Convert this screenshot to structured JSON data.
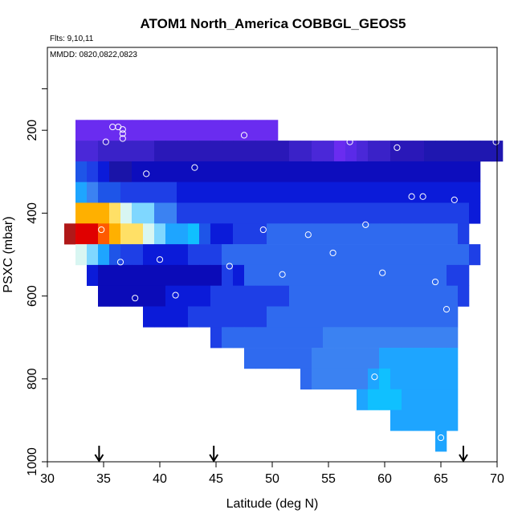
{
  "chart_data": {
    "type": "heatmap",
    "title": "ATOM1 North_America COBBGL_GEOS5",
    "subtitle_flights": "Flts: 9,10,11",
    "subtitle_dates": "MMDD: 0820,0822,0823",
    "xlabel": "Latitude (deg N)",
    "ylabel": "PSXC (mbar)",
    "xlim": [
      30,
      70
    ],
    "ylim": [
      1000,
      0
    ],
    "xticks": [
      "30",
      "35",
      "40",
      "45",
      "50",
      "55",
      "60",
      "65",
      "70"
    ],
    "yticks": [
      "200",
      "400",
      "600",
      "800",
      "1000"
    ],
    "x_tick_values": [
      30,
      35,
      40,
      45,
      50,
      55,
      60,
      65,
      70
    ],
    "y_tick_values": [
      200,
      400,
      600,
      800,
      1000
    ],
    "cell_width_deg": 1,
    "cell_height_mbar": 50,
    "color_scale": [
      "#0b1bd9",
      "#1e3fe6",
      "#2f6aef",
      "#3b82f2",
      "#1ea5ff",
      "#10c0ff",
      "#7fd7ff",
      "#d8f6f2",
      "#ffe066",
      "#ffb000",
      "#ff5a00",
      "#e00000",
      "#b01818"
    ],
    "row_series": [
      {
        "p": 200,
        "x0": 32.5,
        "colors": [
          "#6a2cf0",
          "#6a2cf0",
          "#6a2cf0",
          "#6a2cf0",
          "#6a2cf0",
          "#6a2cf0",
          "#6a2cf0",
          "#6a2cf0",
          "#6a2cf0",
          "#6a2cf0",
          "#6a2cf0",
          "#6a2cf0",
          "#6a2cf0",
          "#6a2cf0",
          "#6a2cf0",
          "#6a2cf0",
          "#6a2cf0",
          "#6a2cf0"
        ]
      },
      {
        "p": 250,
        "x0": 32.5,
        "colors": [
          "#4a28d8",
          "#4a28d8",
          "#3a22c8",
          "#3a22c8",
          "#3a22c8",
          "#3a22c8",
          "#3a22c8",
          "#2a18b8",
          "#2a18b8",
          "#2a18b8",
          "#2a18b8",
          "#2a18b8",
          "#2a18b8",
          "#2a18b8",
          "#2a18b8",
          "#2a18b8",
          "#2a18b8",
          "#2a18b8",
          "#2a18b8",
          "#3a22c8",
          "#3a22c8",
          "#4a28d8",
          "#4a28d8",
          "#6a2cf0",
          "#5a2ae8",
          "#4a28d8",
          "#3a22c8",
          "#3a22c8",
          "#2a18b8",
          "#2a18b8",
          "#2a18b8",
          "#1f17b0",
          "#1f17b0",
          "#1f17b0",
          "#1f17b0",
          "#1f17b0",
          "#1f17b0",
          "#1f17b0"
        ]
      },
      {
        "p": 300,
        "x0": 32.5,
        "colors": [
          "#1e55e8",
          "#1e3fe6",
          "#0b1bd9",
          "#1a14a8",
          "#1a14a8",
          "#0d0dbd",
          "#0d0dbd",
          "#0d0dbd",
          "#0d0dbd",
          "#0d0dbd",
          "#0d0dbd",
          "#0d0dbd",
          "#0d0dbd",
          "#0d0dbd",
          "#0d0dbd",
          "#0d0dbd",
          "#0d0dbd",
          "#0d0dbd",
          "#0d0dbd",
          "#0d0dbd",
          "#0d0dbd",
          "#0d0dbd",
          "#0d0dbd",
          "#0d0dbd",
          "#0d0dbd",
          "#0d0dbd",
          "#0d0dbd",
          "#0d0dbd",
          "#0d0dbd",
          "#0d0dbd",
          "#0d0dbd",
          "#0d0dbd",
          "#0d0dbd",
          "#0d0dbd",
          "#0d0dbd",
          "#0d0dbd"
        ]
      },
      {
        "p": 350,
        "x0": 32.5,
        "colors": [
          "#1ea5ff",
          "#3b82f2",
          "#1e55e8",
          "#1e55e8",
          "#1e3fe6",
          "#1e3fe6",
          "#1e3fe6",
          "#1e3fe6",
          "#1e3fe6",
          "#0b1bd9",
          "#0b1bd9",
          "#0b1bd9",
          "#0b1bd9",
          "#0b1bd9",
          "#0b1bd9",
          "#0b1bd9",
          "#0b1bd9",
          "#0b1bd9",
          "#0b1bd9",
          "#0b1bd9",
          "#0b1bd9",
          "#0b1bd9",
          "#0b1bd9",
          "#0b1bd9",
          "#0b1bd9",
          "#0b1bd9",
          "#0b1bd9",
          "#0b1bd9",
          "#0b1bd9",
          "#0b1bd9",
          "#0b1bd9",
          "#0b1bd9",
          "#0b1bd9",
          "#0b1bd9",
          "#0b1bd9",
          "#0b1bd9"
        ]
      },
      {
        "p": 400,
        "x0": 32.5,
        "colors": [
          "#ffb000",
          "#ffb000",
          "#ffb000",
          "#ffe066",
          "#d8f6f2",
          "#7fd7ff",
          "#7fd7ff",
          "#3b82f2",
          "#3b82f2",
          "#1e3fe6",
          "#1e3fe6",
          "#1e3fe6",
          "#1e3fe6",
          "#1e3fe6",
          "#1e3fe6",
          "#1e3fe6",
          "#1e3fe6",
          "#1e3fe6",
          "#1e3fe6",
          "#1e3fe6",
          "#1e3fe6",
          "#1e3fe6",
          "#1e3fe6",
          "#1e3fe6",
          "#1e3fe6",
          "#1e3fe6",
          "#1e3fe6",
          "#1e3fe6",
          "#1e3fe6",
          "#1e3fe6",
          "#1e3fe6",
          "#1e3fe6",
          "#1e3fe6",
          "#1e3fe6",
          "#1e3fe6",
          "#0b1bd9"
        ]
      },
      {
        "p": 450,
        "x0": 31.5,
        "colors": [
          "#b01818",
          "#e00000",
          "#e00000",
          "#ff5a00",
          "#ffb000",
          "#ffe066",
          "#ffe066",
          "#d8f6f2",
          "#7fd7ff",
          "#1ea5ff",
          "#1ea5ff",
          "#10c0ff",
          "#1e55e8",
          "#0b1bd9",
          "#0b1bd9",
          "#1e3fe6",
          "#1e3fe6",
          "#1e3fe6",
          "#2f6aef",
          "#2f6aef",
          "#2f6aef",
          "#2f6aef",
          "#2f6aef",
          "#2f6aef",
          "#2f6aef",
          "#2f6aef",
          "#2f6aef",
          "#2f6aef",
          "#2f6aef",
          "#2f6aef",
          "#2f6aef",
          "#2f6aef",
          "#2f6aef",
          "#2f6aef",
          "#2f6aef",
          "#1e3fe6"
        ]
      },
      {
        "p": 500,
        "x0": 32.5,
        "colors": [
          "#d8f6f2",
          "#7fd7ff",
          "#1ea5ff",
          "#1e55e8",
          "#1e3fe6",
          "#1e3fe6",
          "#0b1bd9",
          "#0b1bd9",
          "#0b1bd9",
          "#0b1bd9",
          "#1e3fe6",
          "#1e3fe6",
          "#1e3fe6",
          "#2f6aef",
          "#2f6aef",
          "#2f6aef",
          "#2f6aef",
          "#2f6aef",
          "#2f6aef",
          "#2f6aef",
          "#2f6aef",
          "#2f6aef",
          "#2f6aef",
          "#2f6aef",
          "#2f6aef",
          "#2f6aef",
          "#2f6aef",
          "#2f6aef",
          "#2f6aef",
          "#2f6aef",
          "#2f6aef",
          "#2f6aef",
          "#2f6aef",
          "#2f6aef",
          "#2f6aef",
          "#1e3fe6"
        ]
      },
      {
        "p": 550,
        "x0": 33.5,
        "colors": [
          "#0b1bd9",
          "#0b0bb8",
          "#0b0bb8",
          "#0b0bb8",
          "#0b0bb8",
          "#0b0bb8",
          "#0b0bb8",
          "#0b0bb8",
          "#0b0bb8",
          "#0b0bb8",
          "#0b0bb8",
          "#0b0bb8",
          "#1e3fe6",
          "#0b1bd9",
          "#2f6aef",
          "#2f6aef",
          "#2f6aef",
          "#2f6aef",
          "#2f6aef",
          "#2f6aef",
          "#2f6aef",
          "#2f6aef",
          "#2f6aef",
          "#2f6aef",
          "#2f6aef",
          "#2f6aef",
          "#2f6aef",
          "#2f6aef",
          "#2f6aef",
          "#2f6aef",
          "#2f6aef",
          "#2f6aef",
          "#1e3fe6",
          "#1e3fe6"
        ]
      },
      {
        "p": 600,
        "x0": 34.5,
        "colors": [
          "#0b0bb8",
          "#0b0bb8",
          "#0b0bb8",
          "#0b0bb8",
          "#0b0bb8",
          "#0b0bb8",
          "#0b1bd9",
          "#0b1bd9",
          "#0b1bd9",
          "#0b1bd9",
          "#1e3fe6",
          "#1e3fe6",
          "#1e3fe6",
          "#1e3fe6",
          "#1e3fe6",
          "#1e3fe6",
          "#1e3fe6",
          "#2f6aef",
          "#2f6aef",
          "#2f6aef",
          "#2f6aef",
          "#2f6aef",
          "#2f6aef",
          "#2f6aef",
          "#2f6aef",
          "#2f6aef",
          "#2f6aef",
          "#2f6aef",
          "#2f6aef",
          "#2f6aef",
          "#2f6aef",
          "#2f6aef",
          "#1e3fe6"
        ]
      },
      {
        "p": 650,
        "x0": 38.5,
        "colors": [
          "#0b1bd9",
          "#0b1bd9",
          "#0b1bd9",
          "#0b1bd9",
          "#1e3fe6",
          "#1e3fe6",
          "#1e3fe6",
          "#1e3fe6",
          "#1e3fe6",
          "#1e3fe6",
          "#1e3fe6",
          "#2f6aef",
          "#2f6aef",
          "#2f6aef",
          "#2f6aef",
          "#2f6aef",
          "#2f6aef",
          "#2f6aef",
          "#2f6aef",
          "#2f6aef",
          "#2f6aef",
          "#2f6aef",
          "#2f6aef",
          "#2f6aef",
          "#2f6aef",
          "#2f6aef",
          "#2f6aef",
          "#2f6aef"
        ]
      },
      {
        "p": 700,
        "x0": 44.5,
        "colors": [
          "#1e3fe6",
          "#2f6aef",
          "#2f6aef",
          "#2f6aef",
          "#2f6aef",
          "#2f6aef",
          "#2f6aef",
          "#2f6aef",
          "#2f6aef",
          "#2f6aef",
          "#3b82f2",
          "#3b82f2",
          "#3b82f2",
          "#3b82f2",
          "#3b82f2",
          "#3b82f2",
          "#3b82f2",
          "#3b82f2",
          "#3b82f2",
          "#3b82f2",
          "#3b82f2",
          "#3b82f2"
        ]
      },
      {
        "p": 750,
        "x0": 47.5,
        "colors": [
          "#2f6aef",
          "#2f6aef",
          "#2f6aef",
          "#2f6aef",
          "#2f6aef",
          "#2f6aef",
          "#3b82f2",
          "#3b82f2",
          "#3b82f2",
          "#3b82f2",
          "#3b82f2",
          "#3b82f2",
          "#1ea5ff",
          "#1ea5ff",
          "#1ea5ff",
          "#1ea5ff",
          "#1ea5ff",
          "#1ea5ff",
          "#1ea5ff"
        ]
      },
      {
        "p": 800,
        "x0": 52.5,
        "colors": [
          "#2f6aef",
          "#3b82f2",
          "#3b82f2",
          "#3b82f2",
          "#3b82f2",
          "#3b82f2",
          "#1ea5ff",
          "#10c0ff",
          "#1ea5ff",
          "#1ea5ff",
          "#1ea5ff",
          "#1ea5ff",
          "#1ea5ff",
          "#1ea5ff"
        ]
      },
      {
        "p": 850,
        "x0": 57.5,
        "colors": [
          "#1ea5ff",
          "#10c0ff",
          "#10c0ff",
          "#10c0ff",
          "#1ea5ff",
          "#1ea5ff",
          "#1ea5ff",
          "#1ea5ff",
          "#1ea5ff"
        ]
      },
      {
        "p": 900,
        "x0": 60.5,
        "colors": [
          "#1ea5ff",
          "#1ea5ff",
          "#1ea5ff",
          "#1ea5ff",
          "#1ea5ff",
          "#1ea5ff"
        ]
      },
      {
        "p": 950,
        "x0": 64.5,
        "colors": [
          "#1ea5ff"
        ]
      }
    ],
    "observations": [
      {
        "lat": 34.8,
        "p": 440
      },
      {
        "lat": 35.2,
        "p": 228
      },
      {
        "lat": 35.8,
        "p": 192
      },
      {
        "lat": 36.3,
        "p": 192
      },
      {
        "lat": 36.7,
        "p": 198
      },
      {
        "lat": 36.7,
        "p": 208
      },
      {
        "lat": 36.7,
        "p": 220
      },
      {
        "lat": 36.5,
        "p": 518
      },
      {
        "lat": 37.8,
        "p": 605
      },
      {
        "lat": 38.8,
        "p": 305
      },
      {
        "lat": 40.0,
        "p": 512
      },
      {
        "lat": 41.4,
        "p": 598
      },
      {
        "lat": 43.1,
        "p": 290
      },
      {
        "lat": 46.2,
        "p": 528
      },
      {
        "lat": 47.5,
        "p": 212
      },
      {
        "lat": 49.2,
        "p": 440
      },
      {
        "lat": 50.9,
        "p": 548
      },
      {
        "lat": 52.0,
        "p": 210
      },
      {
        "lat": 53.2,
        "p": 452
      },
      {
        "lat": 55.4,
        "p": 496
      },
      {
        "lat": 56.9,
        "p": 228
      },
      {
        "lat": 58.3,
        "p": 428
      },
      {
        "lat": 59.1,
        "p": 795
      },
      {
        "lat": 59.8,
        "p": 544
      },
      {
        "lat": 61.1,
        "p": 242
      },
      {
        "lat": 62.4,
        "p": 360
      },
      {
        "lat": 63.4,
        "p": 360
      },
      {
        "lat": 64.5,
        "p": 566
      },
      {
        "lat": 65.5,
        "p": 632
      },
      {
        "lat": 66.2,
        "p": 368
      },
      {
        "lat": 65.0,
        "p": 942
      },
      {
        "lat": 69.9,
        "p": 228
      }
    ],
    "arrows_lat": [
      34.6,
      44.8,
      67.0
    ]
  }
}
